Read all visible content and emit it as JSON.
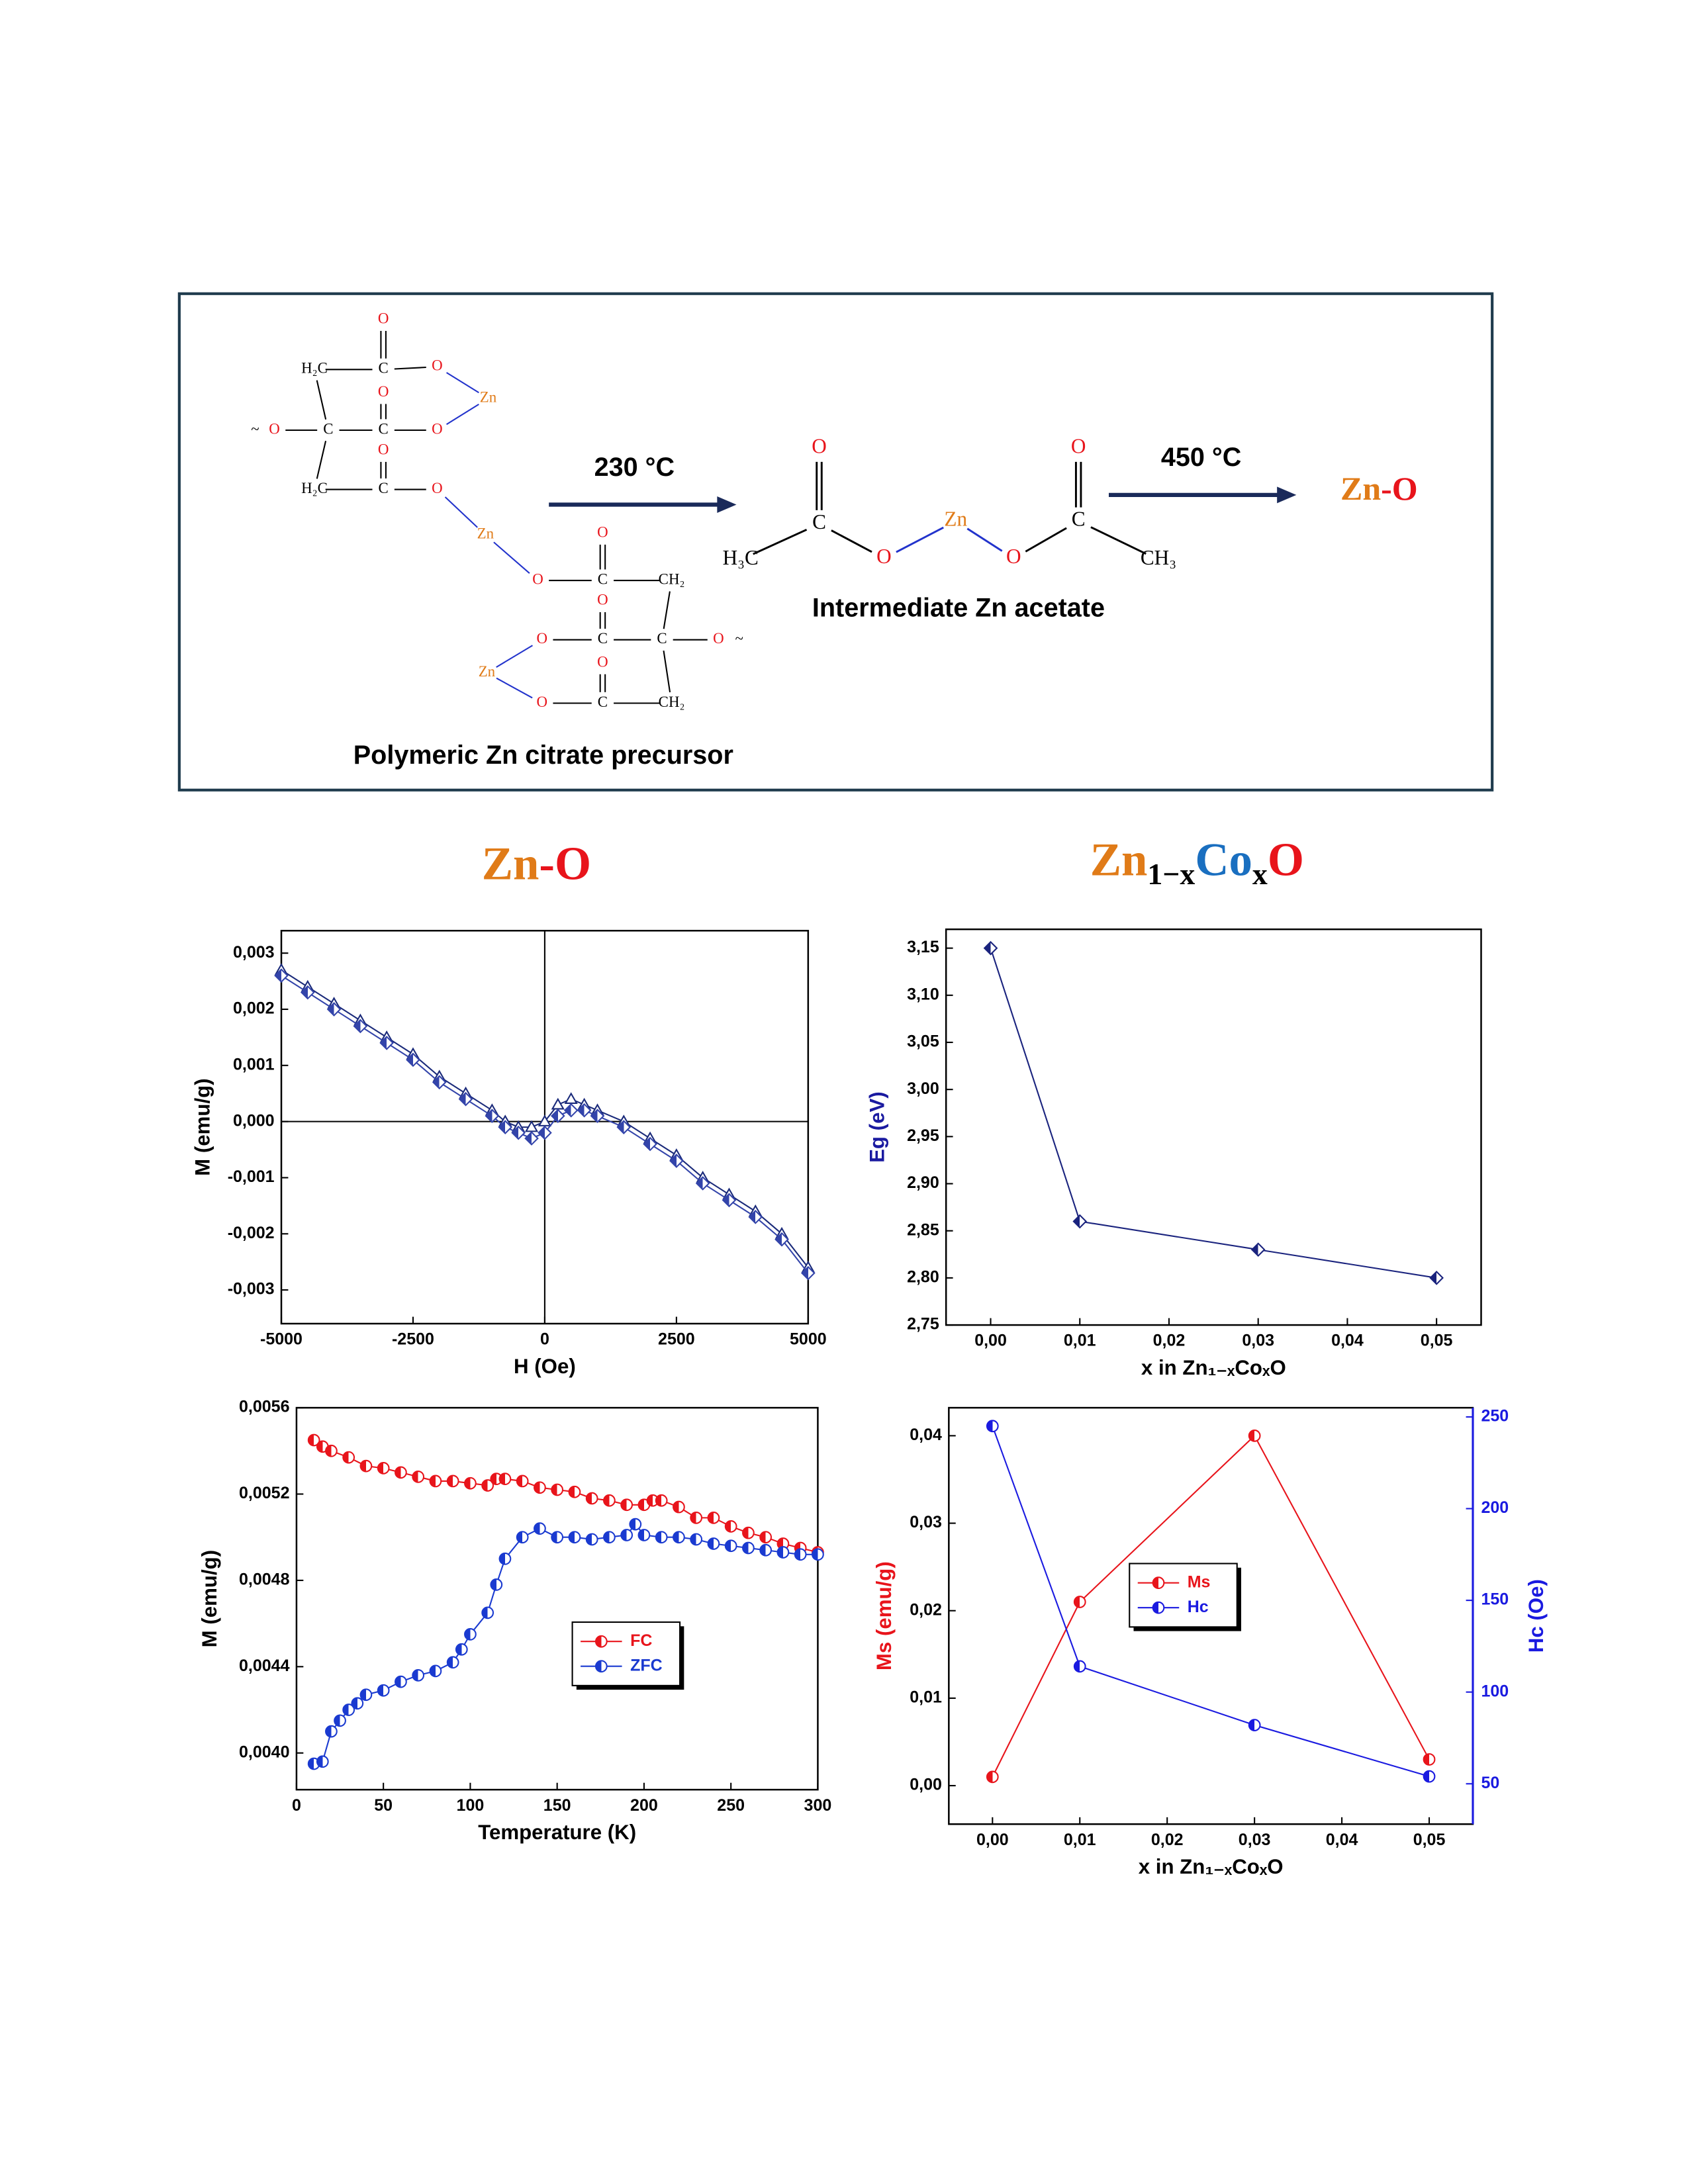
{
  "scheme": {
    "precursor_atoms": [
      {
        "label": "O",
        "color": "#e8141b"
      },
      {
        "label": "H₂C",
        "color": "#000000"
      },
      {
        "label": "C",
        "color": "#000000"
      },
      {
        "label": "O",
        "color": "#e8141b"
      },
      {
        "label": "Zn",
        "color": "#e07b18"
      },
      {
        "label": "O",
        "color": "#e8141b"
      },
      {
        "label": "~",
        "color": "#000000"
      },
      {
        "label": "O",
        "color": "#e8141b"
      },
      {
        "label": "C",
        "color": "#000000"
      },
      {
        "label": "C",
        "color": "#000000"
      },
      {
        "label": "O",
        "color": "#e8141b"
      },
      {
        "label": "O",
        "color": "#e8141b"
      },
      {
        "label": "H₂C",
        "color": "#000000"
      },
      {
        "label": "C",
        "color": "#000000"
      },
      {
        "label": "O",
        "color": "#e8141b"
      },
      {
        "label": "Zn",
        "color": "#e07b18"
      },
      {
        "label": "O",
        "color": "#e8141b"
      },
      {
        "label": "O",
        "color": "#e8141b"
      },
      {
        "label": "C",
        "color": "#000000"
      },
      {
        "label": "CH₂",
        "color": "#000000"
      },
      {
        "label": "O",
        "color": "#e8141b"
      },
      {
        "label": "O",
        "color": "#e8141b"
      },
      {
        "label": "C",
        "color": "#000000"
      },
      {
        "label": "C",
        "color": "#000000"
      },
      {
        "label": "O",
        "color": "#e8141b"
      },
      {
        "label": "~",
        "color": "#000000"
      },
      {
        "label": "O",
        "color": "#e8141b"
      },
      {
        "label": "Zn",
        "color": "#e07b18"
      },
      {
        "label": "O",
        "color": "#e8141b"
      },
      {
        "label": "C",
        "color": "#000000"
      },
      {
        "label": "CH₂",
        "color": "#000000"
      }
    ],
    "precursor_label": "Polymeric Zn citrate precursor",
    "step1": "230 °C",
    "acetate_atoms": [
      {
        "label": "O",
        "color": "#e8141b"
      },
      {
        "label": "O",
        "color": "#e8141b"
      },
      {
        "label": "C",
        "color": "#000000"
      },
      {
        "label": "Zn",
        "color": "#e07b18"
      },
      {
        "label": "C",
        "color": "#000000"
      },
      {
        "label": "H₃C",
        "color": "#000000"
      },
      {
        "label": "O",
        "color": "#e8141b"
      },
      {
        "label": "O",
        "color": "#e8141b"
      },
      {
        "label": "CH₃",
        "color": "#000000"
      }
    ],
    "acetate_label": "Intermediate Zn acetate",
    "step2": "450 °C",
    "product": [
      "Zn",
      "-O"
    ]
  },
  "headings": {
    "left": [
      "Zn",
      "-O"
    ],
    "right": [
      "Zn",
      "1−x",
      "Co",
      "x",
      "O"
    ]
  },
  "chart_data": [
    {
      "type": "line",
      "xlabel": "H (Oe)",
      "ylabel": "M (emu/g)",
      "xlim": [
        -5000,
        5000
      ],
      "ylim": [
        -0.0036,
        0.0034
      ],
      "xticks": [
        -5000,
        -2500,
        0,
        2500,
        5000
      ],
      "yticks": [
        {
          "value": -0.003,
          "label": "-0,003"
        },
        {
          "value": -0.002,
          "label": "-0,002"
        },
        {
          "value": -0.001,
          "label": "-0,001"
        },
        {
          "value": 0,
          "label": "0,000"
        },
        {
          "value": 0.001,
          "label": "0,001"
        },
        {
          "value": 0.002,
          "label": "0,002"
        },
        {
          "value": 0.003,
          "label": "0,003"
        }
      ],
      "zero_lines": true,
      "x": [
        -5000,
        -4500,
        -4000,
        -3500,
        -3000,
        -2500,
        -2000,
        -1500,
        -1000,
        -750,
        -500,
        -250,
        0,
        250,
        500,
        750,
        1000,
        1500,
        2000,
        2500,
        3000,
        3500,
        4000,
        4500,
        5000
      ],
      "series": [
        {
          "color": "#1a2a7a",
          "marker": "triangle",
          "values": [
            0.0027,
            0.0024,
            0.0021,
            0.0018,
            0.0015,
            0.0012,
            0.0008,
            0.0005,
            0.0002,
            0.0,
            -0.0001,
            -0.0001,
            0.0,
            0.0003,
            0.0004,
            0.0003,
            0.0002,
            0.0,
            -0.0003,
            -0.0006,
            -0.001,
            -0.0013,
            -0.0016,
            -0.002,
            -0.0026
          ]
        },
        {
          "color": "#3344aa",
          "marker": "diamond",
          "values": [
            0.0026,
            0.0023,
            0.002,
            0.0017,
            0.0014,
            0.0011,
            0.0007,
            0.0004,
            0.0001,
            -0.0001,
            -0.0002,
            -0.0003,
            -0.0002,
            0.0001,
            0.0002,
            0.0002,
            0.0001,
            -0.0001,
            -0.0004,
            -0.0007,
            -0.0011,
            -0.0014,
            -0.0017,
            -0.0021,
            -0.0027
          ]
        }
      ]
    },
    {
      "type": "line",
      "xlabel": "x in Zn₁₋ₓCoₓO",
      "ylabel": "Eg (eV)",
      "ylabel_color": "#1a1aa0",
      "xlim": [
        -0.005,
        0.055
      ],
      "ylim": [
        2.75,
        3.17
      ],
      "xticks": [
        {
          "value": 0,
          "label": "0,00"
        },
        {
          "value": 0.01,
          "label": "0,01"
        },
        {
          "value": 0.02,
          "label": "0,02"
        },
        {
          "value": 0.03,
          "label": "0,03"
        },
        {
          "value": 0.04,
          "label": "0,04"
        },
        {
          "value": 0.05,
          "label": "0,05"
        }
      ],
      "yticks": [
        {
          "value": 2.75,
          "label": "2,75"
        },
        {
          "value": 2.8,
          "label": "2,80"
        },
        {
          "value": 2.85,
          "label": "2,85"
        },
        {
          "value": 2.9,
          "label": "2,90"
        },
        {
          "value": 2.95,
          "label": "2,95"
        },
        {
          "value": 3.0,
          "label": "3,00"
        },
        {
          "value": 3.05,
          "label": "3,05"
        },
        {
          "value": 3.1,
          "label": "3,10"
        },
        {
          "value": 3.15,
          "label": "3,15"
        }
      ],
      "x": [
        0,
        0.01,
        0.03,
        0.05
      ],
      "series": [
        {
          "color": "#1a237e",
          "marker": "diamond",
          "values": [
            3.15,
            2.86,
            2.83,
            2.8
          ]
        }
      ]
    },
    {
      "type": "line",
      "xlabel": "Temperature (K)",
      "ylabel": "M (emu/g)",
      "xlim": [
        0,
        300
      ],
      "ylim": [
        0.00383,
        0.0056
      ],
      "xticks": [
        0,
        50,
        100,
        150,
        200,
        250,
        300
      ],
      "yticks": [
        {
          "value": 0.004,
          "label": "0,0040"
        },
        {
          "value": 0.0044,
          "label": "0,0044"
        },
        {
          "value": 0.0048,
          "label": "0,0048"
        },
        {
          "value": 0.0052,
          "label": "0,0052"
        },
        {
          "value": 0.0056,
          "label": "0,0056"
        }
      ],
      "legend": "center",
      "series": [
        {
          "name": "FC",
          "color": "#e8141b",
          "marker": "circle",
          "x": [
            10,
            15,
            20,
            30,
            40,
            50,
            60,
            70,
            80,
            90,
            100,
            110,
            115,
            120,
            130,
            140,
            150,
            160,
            170,
            180,
            190,
            200,
            205,
            210,
            220,
            230,
            240,
            250,
            260,
            270,
            280,
            290,
            300
          ],
          "values": [
            0.00545,
            0.00542,
            0.0054,
            0.00537,
            0.00533,
            0.00532,
            0.0053,
            0.00528,
            0.00526,
            0.00526,
            0.00525,
            0.00524,
            0.00527,
            0.00527,
            0.00526,
            0.00523,
            0.00522,
            0.00521,
            0.00518,
            0.00517,
            0.00515,
            0.00515,
            0.00517,
            0.00517,
            0.00514,
            0.00509,
            0.00509,
            0.00505,
            0.00502,
            0.005,
            0.00497,
            0.00495,
            0.00493
          ]
        },
        {
          "name": "ZFC",
          "color": "#1a3ad0",
          "marker": "circle",
          "x": [
            10,
            15,
            20,
            25,
            30,
            35,
            40,
            50,
            60,
            70,
            80,
            90,
            95,
            100,
            110,
            115,
            120,
            130,
            140,
            150,
            160,
            170,
            180,
            190,
            195,
            200,
            210,
            220,
            230,
            240,
            250,
            260,
            270,
            280,
            290,
            300
          ],
          "values": [
            0.00395,
            0.00396,
            0.0041,
            0.00415,
            0.0042,
            0.00423,
            0.00427,
            0.00429,
            0.00433,
            0.00436,
            0.00438,
            0.00442,
            0.00448,
            0.00455,
            0.00465,
            0.00478,
            0.0049,
            0.005,
            0.00504,
            0.005,
            0.005,
            0.00499,
            0.005,
            0.00501,
            0.00506,
            0.00501,
            0.005,
            0.005,
            0.00499,
            0.00497,
            0.00496,
            0.00495,
            0.00494,
            0.00493,
            0.00492,
            0.00492
          ]
        }
      ]
    },
    {
      "type": "line",
      "xlabel": "x in Zn₁₋ₓCoₓO",
      "ylabel": "Ms (emu/g)",
      "ylabel_color": "#e8141b",
      "y2label": "Hc (Oe)",
      "y2_color": "#1a1ae0",
      "xlim": [
        -0.005,
        0.055
      ],
      "ylim": [
        -0.0044,
        0.0432
      ],
      "y2lim": [
        28,
        255
      ],
      "xticks": [
        {
          "value": 0,
          "label": "0,00"
        },
        {
          "value": 0.01,
          "label": "0,01"
        },
        {
          "value": 0.02,
          "label": "0,02"
        },
        {
          "value": 0.03,
          "label": "0,03"
        },
        {
          "value": 0.04,
          "label": "0,04"
        },
        {
          "value": 0.05,
          "label": "0,05"
        }
      ],
      "yticks": [
        {
          "value": 0,
          "label": "0,00"
        },
        {
          "value": 0.01,
          "label": "0,01"
        },
        {
          "value": 0.02,
          "label": "0,02"
        },
        {
          "value": 0.03,
          "label": "0,03"
        },
        {
          "value": 0.04,
          "label": "0,04"
        }
      ],
      "y2ticks": [
        50,
        100,
        150,
        200,
        250
      ],
      "legend": "center",
      "x": [
        0,
        0.01,
        0.03,
        0.05
      ],
      "series": [
        {
          "name": "Ms",
          "color": "#e8141b",
          "marker": "circle",
          "values": [
            0.001,
            0.021,
            0.04,
            0.003
          ]
        },
        {
          "name": "Hc",
          "color": "#1a1ae0",
          "marker": "circle",
          "axis": "y2",
          "values": [
            245,
            114,
            82,
            54
          ]
        }
      ]
    }
  ]
}
